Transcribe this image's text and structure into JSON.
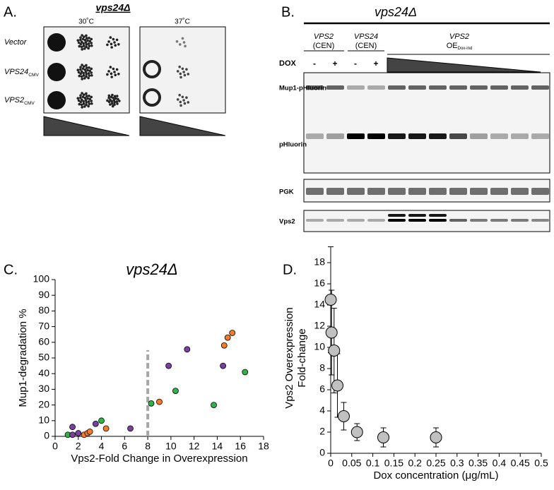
{
  "panel_a": {
    "label": "A.",
    "title": "vps24Δ",
    "temps": [
      "30˚C",
      "37˚C"
    ],
    "rows": [
      {
        "name": "Vector"
      },
      {
        "name": "VPS24",
        "sub": "CMV"
      },
      {
        "name": "VPS2",
        "sub": "CMV"
      }
    ]
  },
  "panel_b": {
    "label": "B.",
    "title": "vps24Δ",
    "columns": [
      {
        "name": "VPS2",
        "note": "(CEN)"
      },
      {
        "name": "VPS24",
        "note": "(CEN)"
      },
      {
        "name": "VPS2",
        "note": "OE",
        "sub": "Dox-ind"
      }
    ],
    "dox_label": "DOX",
    "dox_signs": [
      "-",
      "+",
      "-",
      "+"
    ],
    "blot_labels": [
      "Mup1-pHluorin",
      "pHluorin",
      "PGK",
      "Vps2"
    ]
  },
  "chart_data": [
    {
      "panel_label": "C.",
      "type": "scatter",
      "title": "vps24Δ",
      "x_label": "Vps2-Fold Change in Overexpression",
      "y_label": "Mup1-degradation %",
      "xlim": [
        0,
        18
      ],
      "xticks": [
        0,
        2,
        4,
        6,
        8,
        10,
        12,
        14,
        16,
        18
      ],
      "ylim": [
        0,
        100
      ],
      "yticks": [
        0,
        10,
        20,
        30,
        40,
        50,
        60,
        70,
        80,
        90,
        100
      ],
      "series": [
        {
          "color": "#2db34a",
          "x": [
            1.1,
            4,
            8.3,
            10.4,
            13.7,
            16.4
          ],
          "values": [
            1,
            10,
            21,
            29,
            20,
            41
          ]
        },
        {
          "color": "#7b3fa0",
          "x": [
            1.5,
            1.5,
            2,
            3.5,
            6.5,
            9.8,
            11.4,
            14.5
          ],
          "values": [
            6,
            1,
            2,
            8,
            5,
            45,
            55.5,
            45
          ]
        },
        {
          "color": "#ef7d27",
          "x": [
            2.5,
            2.8,
            3,
            4.4,
            9,
            14.6,
            14.9,
            15.3
          ],
          "values": [
            1,
            2,
            3,
            5,
            22,
            58,
            63,
            66
          ]
        }
      ],
      "reference_line": {
        "x": 8,
        "y": 55,
        "color": "#a6a6a6"
      }
    },
    {
      "panel_label": "D.",
      "type": "errorbar",
      "x_label": "Dox concentration (μg/mL)",
      "y_label": [
        "Vps2 Overexpression",
        "Fold-change"
      ],
      "xlim": [
        0,
        0.5
      ],
      "xticks": [
        0,
        0.05,
        0.1,
        0.15,
        0.2,
        0.25,
        0.3,
        0.35,
        0.4,
        0.45,
        0.5
      ],
      "ylim": [
        0,
        18
      ],
      "yticks": [
        0,
        2,
        4,
        6,
        8,
        10,
        12,
        14,
        16,
        18
      ],
      "x": [
        0,
        0.002,
        0.008,
        0.016,
        0.031,
        0.0625,
        0.125,
        0.25
      ],
      "values": [
        14.5,
        11.4,
        9.7,
        6.4,
        3.5,
        2.0,
        1.5,
        1.5
      ],
      "errors": [
        5,
        4,
        4,
        3,
        1.3,
        0.8,
        0.9,
        0.9
      ],
      "color": "#c0c0c0"
    }
  ]
}
